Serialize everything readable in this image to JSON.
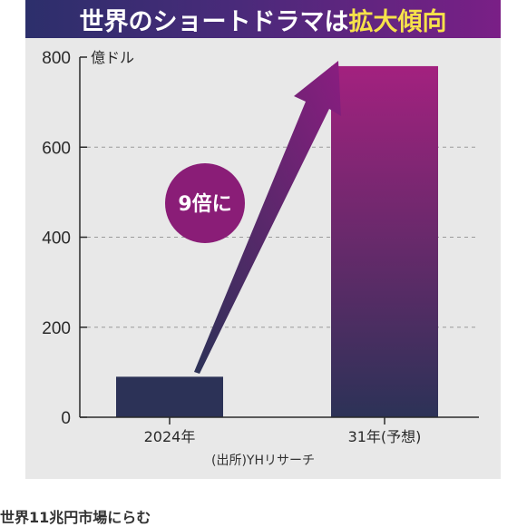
{
  "title": {
    "main": "世界のショートドラマは",
    "accent": "拡大傾向"
  },
  "caption": "世界11兆円市場にらむ",
  "colors": {
    "bar_dark": "#2c3257",
    "bar_gradient_top": "#a3217f",
    "bar_gradient_bottom": "#2c3257",
    "arrow_top": "#8a1d80",
    "arrow_bottom": "#2c3257",
    "callout_circle": "#8a1d77",
    "grid": "#9a9a9a",
    "axis": "#2a2a2a",
    "title_accent": "#f6e24a"
  },
  "chart_data": {
    "type": "bar",
    "unit": "億ドル",
    "categories": [
      "2024年",
      "31年(予想)"
    ],
    "values": [
      90,
      780
    ],
    "ylim": [
      0,
      800
    ],
    "yticks": [
      0,
      200,
      400,
      600,
      800
    ],
    "grid": true,
    "gridline_style": "dashed",
    "annotation": "9倍に",
    "source": "(出所)YHリサーチ"
  }
}
